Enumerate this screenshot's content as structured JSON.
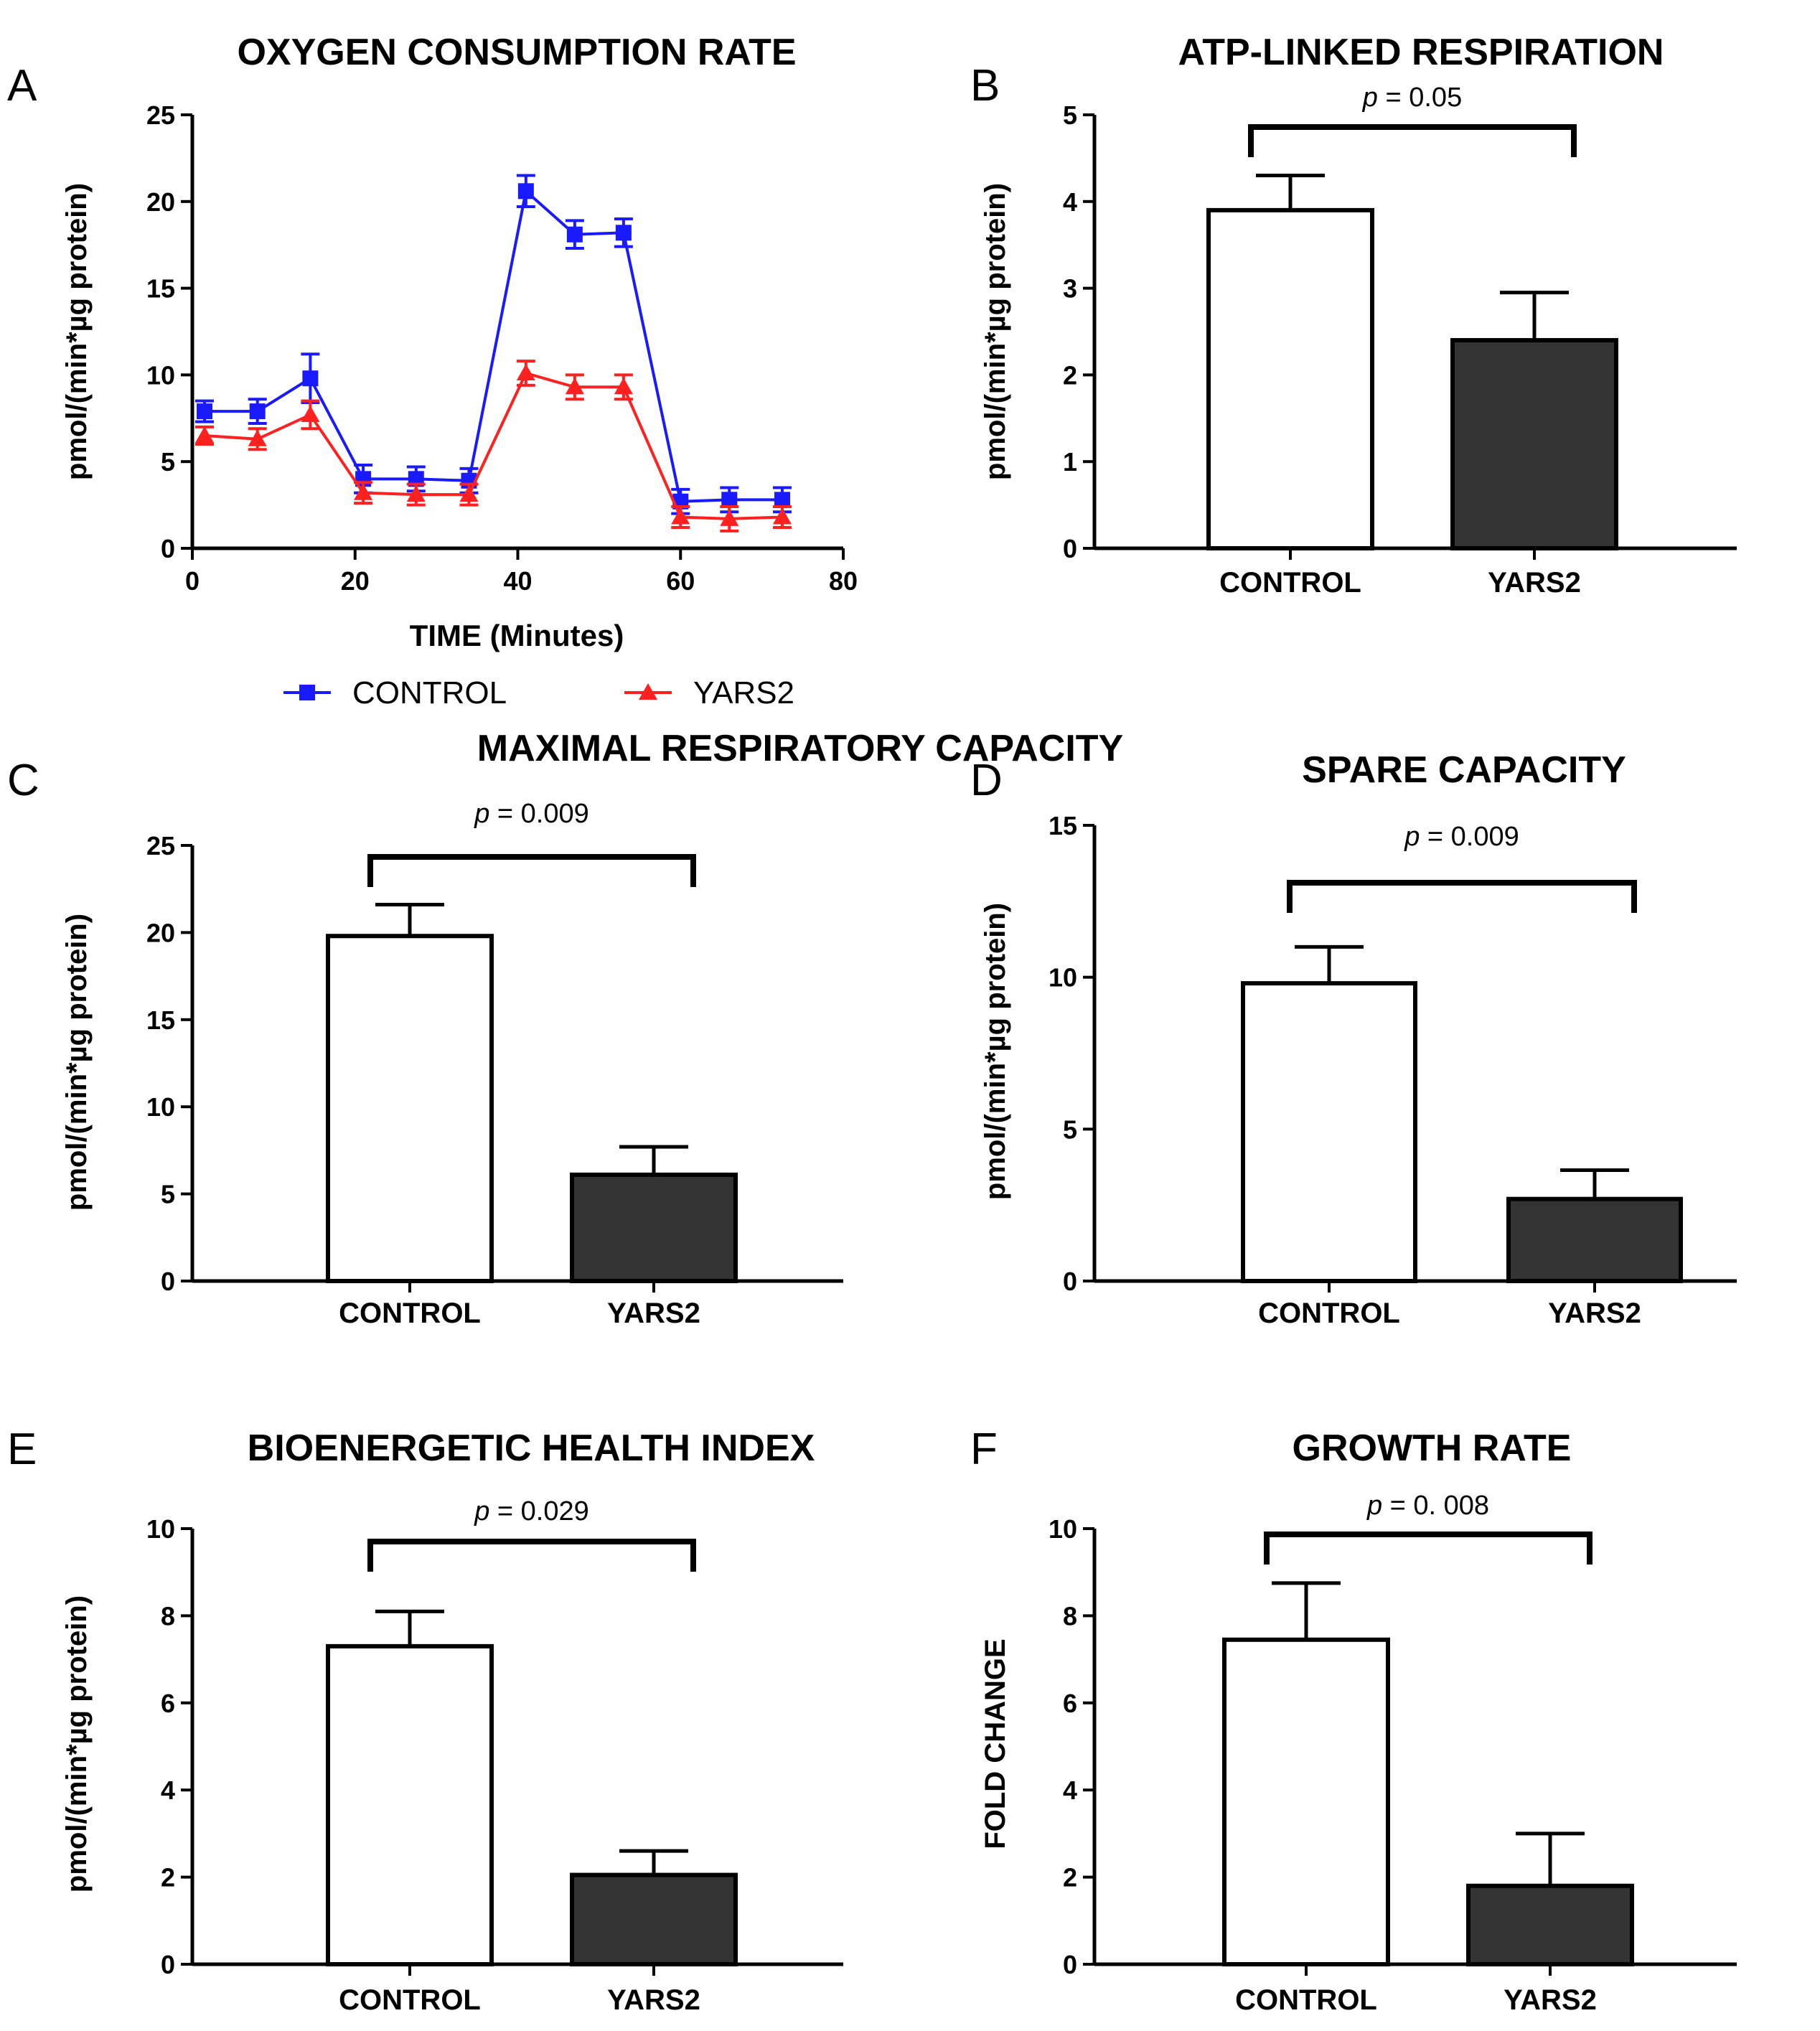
{
  "chart_data": [
    {
      "type": "line",
      "letter": "A",
      "title": "OXYGEN CONSUMPTION RATE",
      "xlabel": "TIME (Minutes)",
      "ylabel": "pmol/(min*µg protein)",
      "xlim": [
        0,
        80
      ],
      "ylim": [
        0,
        25
      ],
      "xticks": [
        "0",
        "20",
        "40",
        "60",
        "80"
      ],
      "yticks": [
        "0",
        "5",
        "10",
        "15",
        "20",
        "25"
      ],
      "legend": "bottom",
      "series": [
        {
          "name": "CONTROL",
          "color": "#1a1aff",
          "marker": "square",
          "x": [
            1.5,
            8,
            14.5,
            21,
            27.5,
            34,
            41,
            47,
            53,
            60,
            66,
            72.5
          ],
          "y": [
            7.9,
            7.9,
            9.8,
            4.0,
            4.0,
            3.9,
            20.6,
            18.1,
            18.2,
            2.7,
            2.8,
            2.8
          ],
          "err": [
            0.6,
            0.7,
            1.4,
            0.8,
            0.7,
            0.7,
            0.9,
            0.8,
            0.8,
            0.7,
            0.7,
            0.7
          ]
        },
        {
          "name": "YARS2",
          "color": "#ff2020",
          "marker": "triangle",
          "x": [
            1.5,
            8,
            14.5,
            21,
            27.5,
            34,
            41,
            47,
            53,
            60,
            66,
            72.5
          ],
          "y": [
            6.5,
            6.3,
            7.7,
            3.2,
            3.1,
            3.1,
            10.1,
            9.3,
            9.3,
            1.8,
            1.7,
            1.8
          ],
          "err": [
            0.5,
            0.6,
            0.8,
            0.6,
            0.6,
            0.6,
            0.7,
            0.7,
            0.7,
            0.6,
            0.7,
            0.6
          ]
        }
      ]
    },
    {
      "type": "bar",
      "letter": "B",
      "title": "ATP-LINKED RESPIRATION",
      "ylabel": "pmol/(min*µg protein)",
      "ylim": [
        0,
        5
      ],
      "yticks": [
        "0",
        "1",
        "2",
        "3",
        "4",
        "5"
      ],
      "categories": [
        "CONTROL",
        "YARS2"
      ],
      "values": [
        3.9,
        2.4
      ],
      "errors": [
        0.4,
        0.55
      ],
      "significance": {
        "prefix": "p",
        "text": " = 0.05"
      }
    },
    {
      "type": "bar",
      "letter": "C",
      "title": "MAXIMAL RESPIRATORY CAPACITY",
      "ylabel": "pmol/(min*µg protein)",
      "ylim": [
        0,
        25
      ],
      "yticks": [
        "0",
        "5",
        "10",
        "15",
        "20",
        "25"
      ],
      "categories": [
        "CONTROL",
        "YARS2"
      ],
      "values": [
        19.8,
        6.1
      ],
      "errors": [
        1.8,
        1.6
      ],
      "significance": {
        "prefix": "p",
        "text": " = 0.009"
      }
    },
    {
      "type": "bar",
      "letter": "D",
      "title": "SPARE CAPACITY",
      "ylabel": "pmol/(min*µg protein)",
      "ylim": [
        0,
        15
      ],
      "yticks": [
        "0",
        "5",
        "10",
        "15"
      ],
      "categories": [
        "CONTROL",
        "YARS2"
      ],
      "values": [
        9.8,
        2.7
      ],
      "errors": [
        1.2,
        0.95
      ],
      "significance": {
        "prefix": "p",
        "text": " = 0.009"
      }
    },
    {
      "type": "bar",
      "letter": "E",
      "title": "BIOENERGETIC HEALTH INDEX",
      "ylabel": "pmol/(min*µg protein)",
      "ylim": [
        0,
        10
      ],
      "yticks": [
        "0",
        "2",
        "4",
        "6",
        "8",
        "10"
      ],
      "categories": [
        "CONTROL",
        "YARS2"
      ],
      "values": [
        7.3,
        2.05
      ],
      "errors": [
        0.8,
        0.55
      ],
      "significance": {
        "prefix": "p",
        "text": " = 0.029"
      }
    },
    {
      "type": "bar",
      "letter": "F",
      "title": "GROWTH RATE",
      "ylabel": "FOLD CHANGE",
      "ylim": [
        0,
        10
      ],
      "yticks": [
        "0",
        "2",
        "4",
        "6",
        "8",
        "10"
      ],
      "categories": [
        "CONTROL",
        "YARS2"
      ],
      "values": [
        7.45,
        1.8
      ],
      "errors": [
        1.3,
        1.2
      ],
      "significance": {
        "prefix": "p",
        "text": " = 0. 008"
      }
    }
  ]
}
